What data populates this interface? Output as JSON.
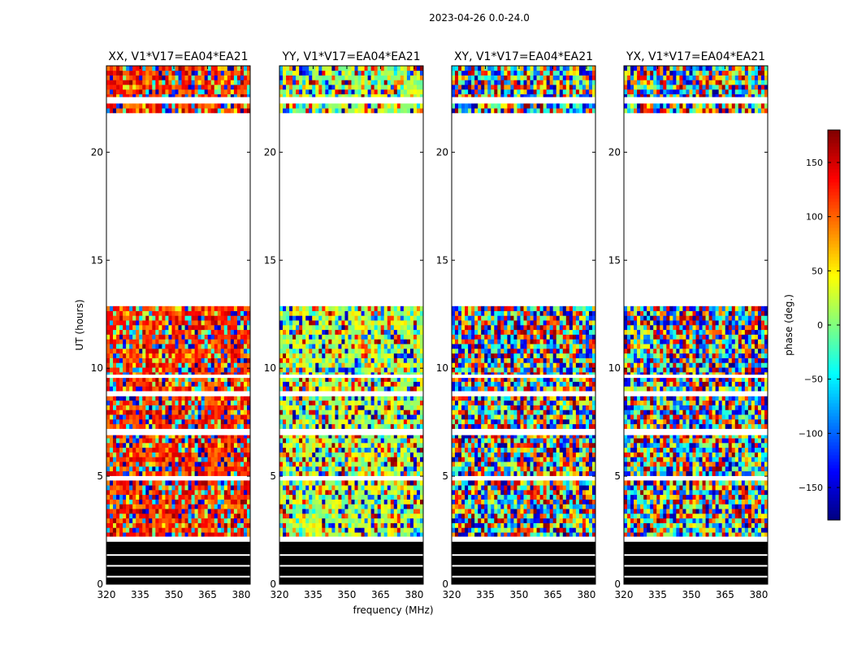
{
  "figure": {
    "suptitle": "2023-04-26 0.0-24.0",
    "ylabel": "UT (hours)",
    "xlabel": "frequency (MHz)"
  },
  "chart_data": {
    "type": "heatmap",
    "x_range": [
      320,
      384
    ],
    "y_range": [
      0,
      24
    ],
    "x_ticks": [
      320,
      335,
      350,
      365,
      380
    ],
    "y_ticks": [
      0,
      5,
      10,
      15,
      20
    ],
    "panels": [
      {
        "title": "XX, V1*V17=EA04*EA21",
        "bias": 120,
        "bias_strength": 0.55
      },
      {
        "title": "YY, V1*V17=EA04*EA21",
        "bias": 20,
        "bias_strength": 0.45
      },
      {
        "title": "XY, V1*V17=EA04*EA21",
        "bias": 0,
        "bias_strength": 0.0
      },
      {
        "title": "YX, V1*V17=EA04*EA21",
        "bias": 0,
        "bias_strength": 0.0
      }
    ],
    "flagged_black_hours": [
      0.0,
      1.9
    ],
    "empty_hours": [
      [
        12.8,
        21.7
      ]
    ],
    "empty_bands_hours": [
      [
        2.0,
        2.2
      ],
      [
        4.85,
        5.0
      ],
      [
        6.9,
        7.1
      ],
      [
        8.7,
        8.9
      ],
      [
        9.55,
        9.7
      ],
      [
        21.7,
        21.75
      ],
      [
        22.3,
        22.55
      ]
    ],
    "colorbar": {
      "label": "phase (deg.)",
      "range": [
        -180,
        180
      ],
      "ticks": [
        150,
        100,
        50,
        0,
        -50,
        -100,
        -150
      ],
      "colormap": "jet"
    }
  }
}
